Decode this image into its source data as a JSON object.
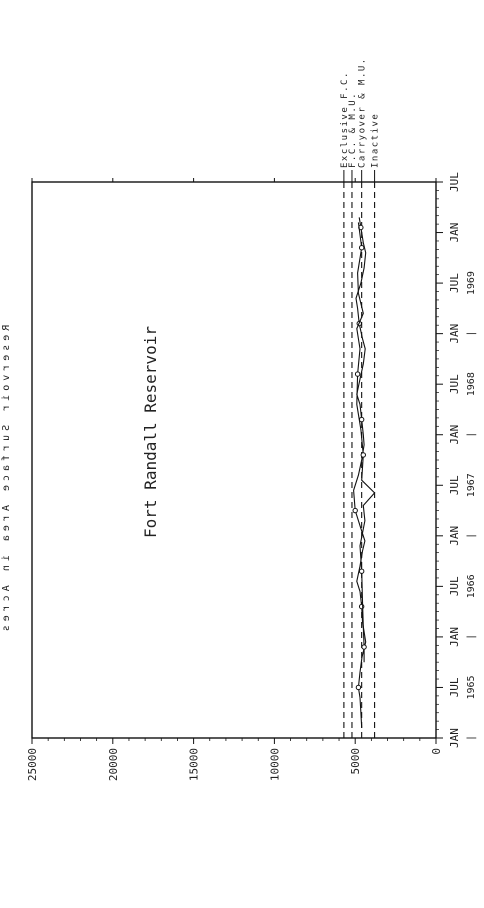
{
  "chart_data": {
    "type": "line",
    "orientation": "rotated-90-ccw",
    "title": "Fort Randall Reservoir",
    "ylabel": "Reservoir Surface Area in Acres",
    "ylim": [
      0,
      25000
    ],
    "y_ticks": [
      "0",
      "5000",
      "10000",
      "15000",
      "20000",
      "25000"
    ],
    "x_tick_labels": [
      "JAN",
      "JUL",
      "JAN",
      "JUL",
      "JAN",
      "JUL",
      "JAN",
      "JUL",
      "JAN",
      "JUL",
      "JAN",
      "JUL"
    ],
    "year_labels": [
      "1965",
      "1966",
      "1967",
      "1968",
      "1969"
    ],
    "x_range": [
      0,
      11
    ],
    "reference_lines": [
      {
        "name": "Exclusive F.C.",
        "value": 5700
      },
      {
        "name": "F.C. & M.U.",
        "value": 5200
      },
      {
        "name": "Carryover & M.U.",
        "value": 4600
      },
      {
        "name": "Inactive",
        "value": 3800
      }
    ],
    "series": [
      {
        "values": [
          [
            0.2,
            4600
          ],
          [
            0.5,
            4650
          ],
          [
            0.8,
            4700
          ],
          [
            1.0,
            4800
          ],
          [
            1.3,
            4700
          ],
          [
            1.6,
            4580
          ],
          [
            1.9,
            4350
          ],
          [
            2.0,
            4400
          ],
          [
            2.3,
            4550
          ],
          [
            2.6,
            4600
          ],
          [
            2.9,
            4700
          ],
          [
            3.1,
            4900
          ],
          [
            3.4,
            4700
          ],
          [
            3.7,
            4550
          ],
          [
            3.9,
            4400
          ],
          [
            4.2,
            4700
          ],
          [
            4.5,
            5000
          ],
          [
            4.7,
            5050
          ],
          [
            4.9,
            5100
          ],
          [
            5.2,
            4800
          ],
          [
            5.5,
            4600
          ],
          [
            5.8,
            4450
          ],
          [
            6.0,
            4500
          ],
          [
            6.3,
            4600
          ],
          [
            6.6,
            4700
          ],
          [
            6.8,
            4900
          ],
          [
            7.1,
            4700
          ],
          [
            7.4,
            4500
          ],
          [
            7.7,
            4380
          ],
          [
            7.9,
            4550
          ],
          [
            8.2,
            4750
          ],
          [
            8.5,
            4850
          ],
          [
            8.7,
            4950
          ],
          [
            9.0,
            4650
          ],
          [
            9.3,
            4450
          ],
          [
            9.6,
            4350
          ],
          [
            9.8,
            4500
          ],
          [
            10.1,
            4650
          ],
          [
            10.3,
            4750
          ]
        ],
        "markers": [
          [
            1.0,
            4800
          ],
          [
            2.6,
            4600
          ],
          [
            4.5,
            5000
          ],
          [
            6.3,
            4600
          ],
          [
            8.2,
            4750
          ],
          [
            10.1,
            4650
          ]
        ]
      },
      {
        "values": [
          [
            1.5,
            4450
          ],
          [
            1.8,
            4450
          ],
          [
            2.2,
            4500
          ],
          [
            2.7,
            4550
          ],
          [
            3.3,
            4600
          ],
          [
            3.8,
            4700
          ],
          [
            4.3,
            4400
          ],
          [
            4.6,
            4500
          ],
          [
            4.85,
            3800
          ],
          [
            5.1,
            4600
          ],
          [
            5.6,
            4500
          ],
          [
            6.1,
            4650
          ],
          [
            6.6,
            4900
          ],
          [
            7.2,
            4850
          ],
          [
            7.7,
            4700
          ],
          [
            8.1,
            4900
          ],
          [
            8.4,
            4500
          ],
          [
            8.8,
            4800
          ],
          [
            9.2,
            4850
          ],
          [
            9.7,
            4600
          ],
          [
            10.2,
            4800
          ]
        ],
        "markers": [
          [
            1.8,
            4450
          ],
          [
            3.3,
            4600
          ],
          [
            5.6,
            4500
          ],
          [
            7.2,
            4850
          ],
          [
            9.7,
            4600
          ]
        ]
      }
    ]
  }
}
